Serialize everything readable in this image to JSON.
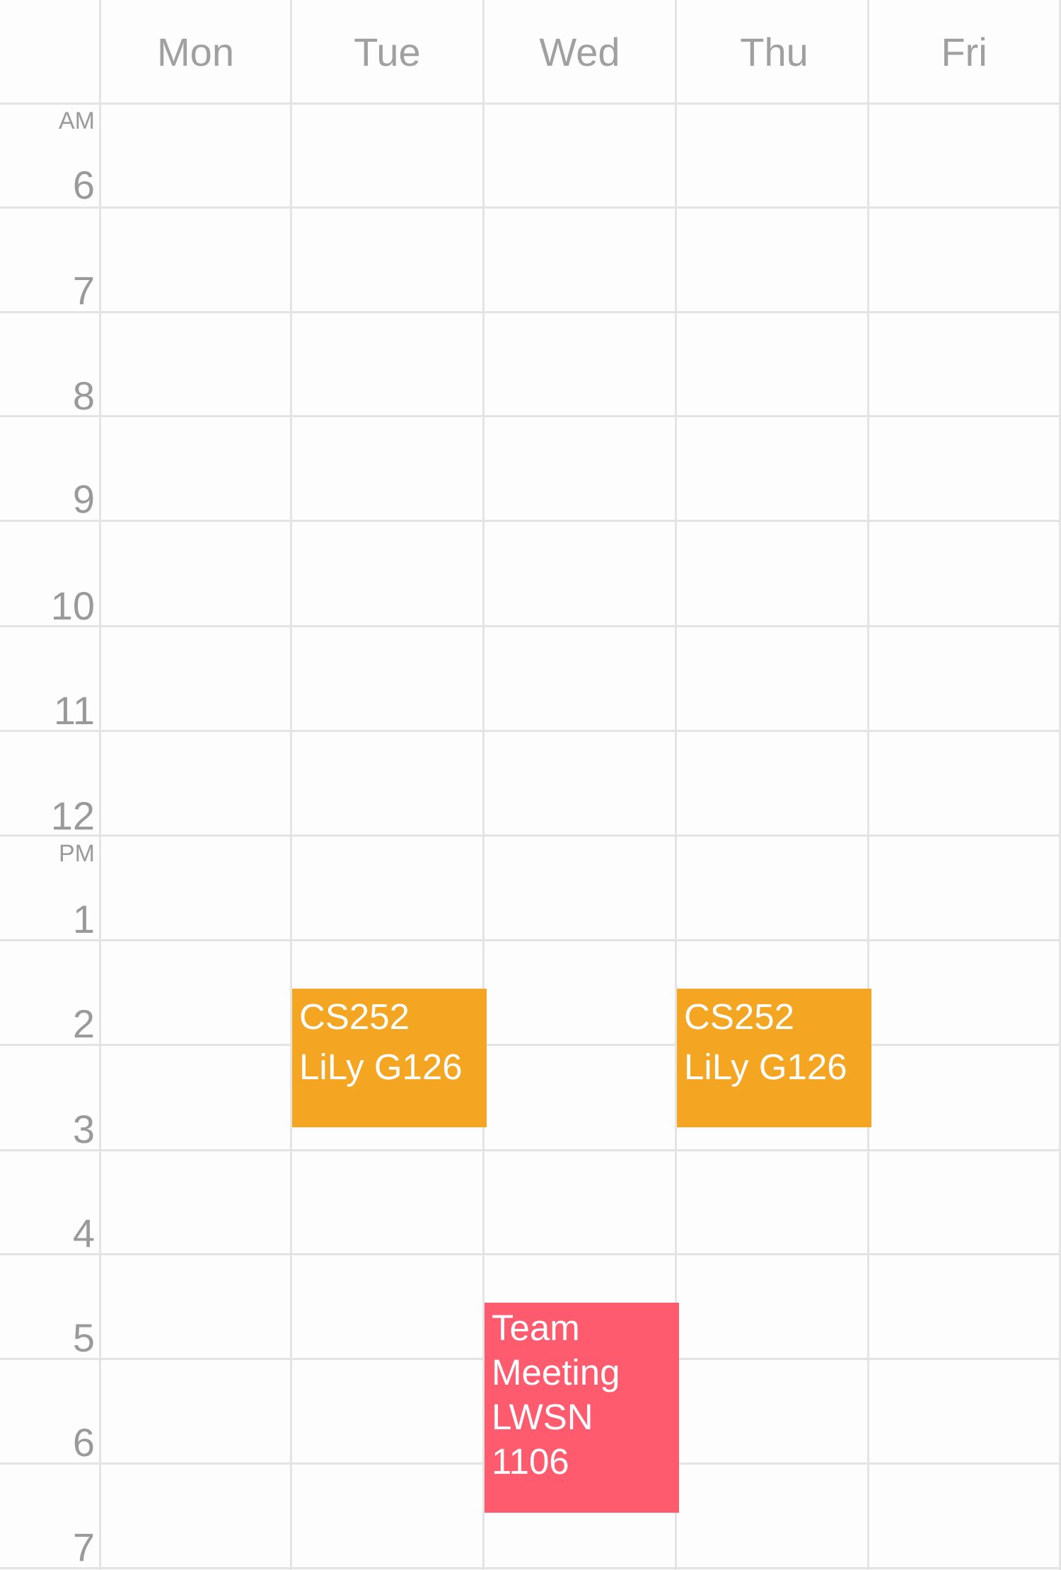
{
  "days": [
    "Mon",
    "Tue",
    "Wed",
    "Thu",
    "Fri"
  ],
  "times": {
    "am_label": "AM",
    "pm_label": "PM",
    "hours": [
      "6",
      "7",
      "8",
      "9",
      "10",
      "11",
      "12",
      "1",
      "2",
      "3",
      "4",
      "5",
      "6",
      "7"
    ]
  },
  "events": [
    {
      "day": "Tue",
      "lines": [
        "CS252",
        "LiLy G126"
      ],
      "color": "#F4A623"
    },
    {
      "day": "Thu",
      "lines": [
        "CS252",
        "LiLy G126"
      ],
      "color": "#F4A623"
    },
    {
      "day": "Wed",
      "lines": [
        "Team",
        "Meeting",
        "LWSN",
        "1106"
      ],
      "color": "#FE5B6F"
    }
  ]
}
